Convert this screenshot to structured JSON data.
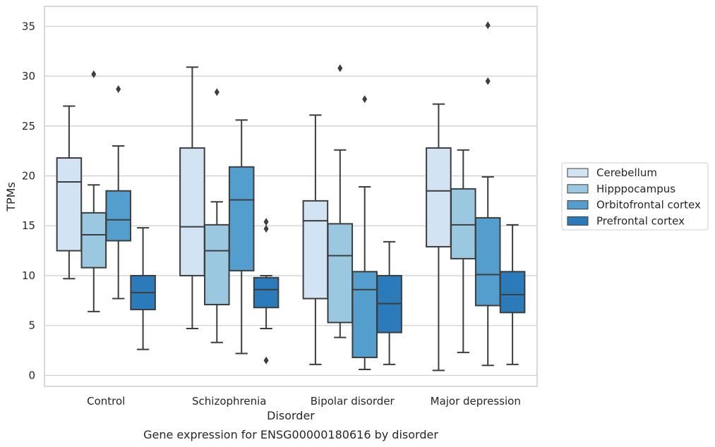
{
  "caption": "Gene expression for ENSG00000180616 by disorder",
  "chart_data": {
    "type": "boxplot",
    "xlabel": "Disorder",
    "ylabel": "TPMs",
    "ylim": [
      -1.1,
      37
    ],
    "yticks": [
      0,
      5,
      10,
      15,
      20,
      25,
      30,
      35
    ],
    "grid": "horizontal",
    "legend_position": "right",
    "categories": [
      "Control",
      "Schizophrenia",
      "Bipolar disorder",
      "Major depression"
    ],
    "series": [
      {
        "name": "Cerebellum",
        "color": "#d2e3f3",
        "boxes": [
          {
            "whislo": 9.7,
            "q1": 12.5,
            "med": 19.4,
            "q3": 21.8,
            "whishi": 27.0,
            "fliers": []
          },
          {
            "whislo": 4.7,
            "q1": 10.0,
            "med": 14.9,
            "q3": 22.8,
            "whishi": 30.9,
            "fliers": []
          },
          {
            "whislo": 1.1,
            "q1": 7.7,
            "med": 15.5,
            "q3": 17.5,
            "whishi": 26.1,
            "fliers": []
          },
          {
            "whislo": 0.5,
            "q1": 12.9,
            "med": 18.5,
            "q3": 22.8,
            "whishi": 27.2,
            "fliers": []
          }
        ]
      },
      {
        "name": "Hipppocampus",
        "color": "#9ac8e0",
        "boxes": [
          {
            "whislo": 6.4,
            "q1": 10.8,
            "med": 14.1,
            "q3": 16.3,
            "whishi": 19.1,
            "fliers": [
              30.2
            ]
          },
          {
            "whislo": 3.3,
            "q1": 7.1,
            "med": 12.5,
            "q3": 15.1,
            "whishi": 17.4,
            "fliers": [
              28.4
            ]
          },
          {
            "whislo": 3.8,
            "q1": 5.3,
            "med": 12.0,
            "q3": 15.2,
            "whishi": 22.6,
            "fliers": [
              30.8
            ]
          },
          {
            "whislo": 2.3,
            "q1": 11.7,
            "med": 15.1,
            "q3": 18.7,
            "whishi": 22.6,
            "fliers": []
          }
        ]
      },
      {
        "name": "Orbitofrontal cortex",
        "color": "#539ecd",
        "boxes": [
          {
            "whislo": 7.7,
            "q1": 13.5,
            "med": 15.6,
            "q3": 18.5,
            "whishi": 23.0,
            "fliers": [
              28.7
            ]
          },
          {
            "whislo": 2.2,
            "q1": 10.5,
            "med": 17.6,
            "q3": 20.9,
            "whishi": 25.6,
            "fliers": []
          },
          {
            "whislo": 0.6,
            "q1": 1.8,
            "med": 8.6,
            "q3": 10.4,
            "whishi": 18.9,
            "fliers": [
              27.7
            ]
          },
          {
            "whislo": 1.0,
            "q1": 7.0,
            "med": 10.1,
            "q3": 15.8,
            "whishi": 19.9,
            "fliers": [
              35.1,
              29.5
            ]
          }
        ]
      },
      {
        "name": "Prefrontal cortex",
        "color": "#2b7bba",
        "boxes": [
          {
            "whislo": 2.6,
            "q1": 6.6,
            "med": 8.3,
            "q3": 10.0,
            "whishi": 14.8,
            "fliers": []
          },
          {
            "whislo": 4.7,
            "q1": 6.8,
            "med": 8.6,
            "q3": 9.8,
            "whishi": 10.0,
            "fliers": [
              15.4,
              14.7,
              1.5
            ]
          },
          {
            "whislo": 1.1,
            "q1": 4.3,
            "med": 7.2,
            "q3": 10.0,
            "whishi": 13.4,
            "fliers": []
          },
          {
            "whislo": 1.1,
            "q1": 6.3,
            "med": 8.1,
            "q3": 10.4,
            "whishi": 15.1,
            "fliers": []
          }
        ]
      }
    ]
  }
}
